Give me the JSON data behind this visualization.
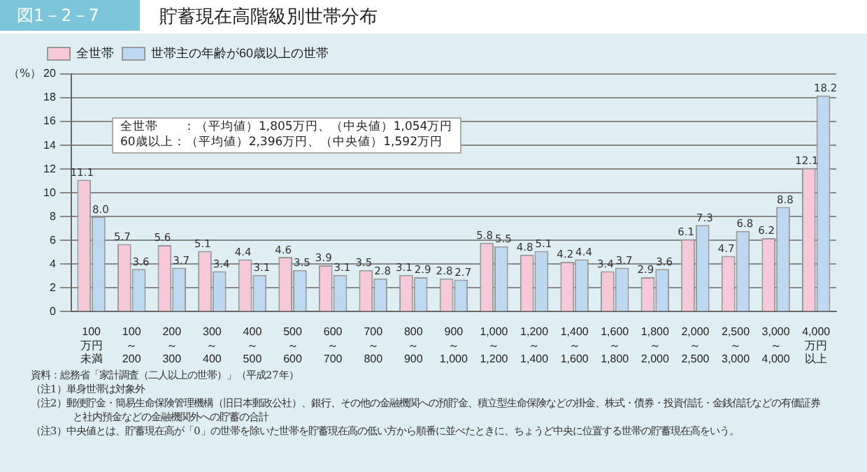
{
  "chart_data": {
    "type": "bar",
    "title": "貯蓄現在高階級別世帯分布",
    "ylabel": "（%）",
    "categories": [
      "100万円未満",
      "100～200",
      "200～300",
      "300～400",
      "400～500",
      "500～600",
      "600～700",
      "700～800",
      "800～900",
      "900～1,000",
      "1,000～1,200",
      "1,200～1,400",
      "1,400～1,600",
      "1,600～1,800",
      "1,800～2,000",
      "2,000～2,500",
      "2,500～3,000",
      "3,000～4,000",
      "4,000万円以上"
    ],
    "series": [
      {
        "name": "全世帯",
        "color": "#f6c8d8",
        "values": [
          11.1,
          5.7,
          5.6,
          5.1,
          4.4,
          4.6,
          3.9,
          3.5,
          3.1,
          2.8,
          5.8,
          4.8,
          4.2,
          3.4,
          2.9,
          6.1,
          4.7,
          6.2,
          12.1
        ],
        "value_labels": [
          "11.1",
          "5.7",
          "5.6",
          "5.1",
          "4.4",
          "4.6",
          "3.9",
          "3.5",
          "3.1",
          "2.8",
          "5.8",
          "4.8",
          "4.2",
          "3.4",
          "2.9",
          "6.1",
          "4.7",
          "6.2",
          "12.1"
        ]
      },
      {
        "name": "世帯主の年齢が60歳以上の世帯",
        "color": "#bcd9f1",
        "values": [
          8.0,
          3.6,
          3.7,
          3.4,
          3.1,
          3.5,
          3.1,
          2.8,
          2.9,
          2.7,
          5.5,
          5.1,
          4.4,
          3.7,
          3.6,
          7.3,
          6.8,
          8.8,
          18.2
        ],
        "value_labels": [
          "8.0",
          "3.6",
          "3.7",
          "3.4",
          "3.1",
          "3.5",
          "3.1",
          "2.8",
          "2.9",
          "2.7",
          "5.5",
          "5.1",
          "4.4",
          "3.7",
          "3.6",
          "7.3",
          "6.8",
          "8.8",
          "18.2"
        ]
      }
    ],
    "ylim": [
      0,
      20
    ],
    "yticks": [
      0,
      2,
      4,
      6,
      8,
      10,
      12,
      14,
      16,
      18,
      20
    ],
    "grid": "y",
    "legend": "top left",
    "annotations": [
      "図1－2－7",
      "全世帯　　：（平均値）1,805万円、（中央値）1,054万円",
      "60歳以上：（平均値）2,396万円、（中央値）1,592万円",
      "資料：総務省「家計調査（二人以上の世帯）」（平成27年）",
      "（注1）単身世帯は対象外",
      "（注2）郵便貯金・簡易生命保険管理機構（旧日本郵政公社）、銀行、その他の金融機関への預貯金、積立型生命保険などの掛金、株式・債券・投資信託・金銭信託などの有価証券と社内預金などの金融機関外への貯蓄の合計",
      "（注3）中央値とは、貯蓄現在高が「0」の世帯を除いた世帯を貯蓄現在高の低い方から順番に並べたときに、ちょうど中央に位置する世帯の貯蓄現在高をいう。"
    ]
  }
}
